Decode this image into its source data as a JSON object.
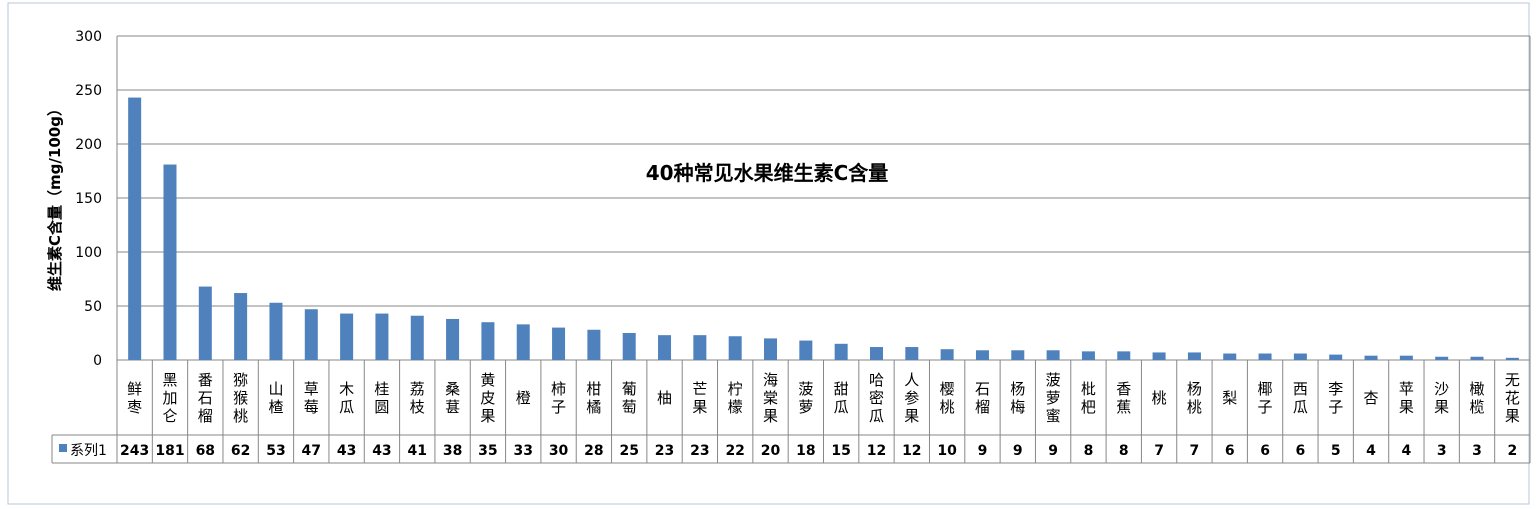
{
  "chart_data": {
    "type": "bar",
    "title": "40种常见水果维生素C含量",
    "ylabel": "维生素C含量（mg/100g）",
    "xlabel": "",
    "ylim": [
      0,
      300
    ],
    "yticks": [
      "0",
      "50",
      "100",
      "150",
      "200",
      "250",
      "300"
    ],
    "grid": true,
    "categories": [
      "鲜枣",
      "黑加仑",
      "番石榴",
      "猕猴桃",
      "山楂",
      "草莓",
      "木瓜",
      "桂圆",
      "荔枝",
      "桑葚",
      "黄皮果",
      "橙",
      "柿子",
      "柑橘",
      "葡萄",
      "柚",
      "芒果",
      "柠檬",
      "海棠果",
      "菠萝",
      "甜瓜",
      "哈密瓜",
      "人参果",
      "樱桃",
      "石榴",
      "杨梅",
      "菠萝蜜",
      "枇杷",
      "香蕉",
      "桃",
      "杨桃",
      "梨",
      "椰子",
      "西瓜",
      "李子",
      "杏",
      "苹果",
      "沙果",
      "橄榄",
      "无花果"
    ],
    "series": [
      {
        "name": "系列1",
        "color": "#4f81bd",
        "values": [
          243,
          181,
          68,
          62,
          53,
          47,
          43,
          43,
          41,
          38,
          35,
          33,
          30,
          28,
          25,
          23,
          23,
          22,
          20,
          18,
          15,
          12,
          12,
          10,
          9,
          9,
          9,
          8,
          8,
          7,
          7,
          6,
          6,
          6,
          5,
          4,
          4,
          3,
          3,
          2
        ]
      }
    ],
    "data_table": true,
    "legend": "data-table"
  }
}
